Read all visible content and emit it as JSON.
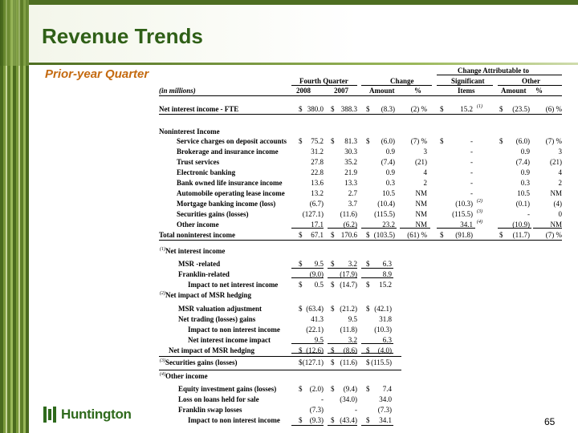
{
  "title": "Revenue Trends",
  "subtitle": "Prior-year Quarter",
  "logo_text": "Huntington",
  "page_number": "65",
  "header": {
    "change_attributable": "Change Attributable to",
    "fourth_quarter": "Fourth Quarter",
    "change": "Change",
    "significant": "Significant",
    "other": "Other",
    "in_millions": "(in millions)",
    "y2008": "2008",
    "y2007": "2007",
    "amount": "Amount",
    "pct": "%",
    "items": "Items",
    "amount2": "Amount",
    "pct2": "%"
  },
  "main_rows": [
    {
      "label": "Net interest income - FTE",
      "bold": true,
      "indent": false,
      "d1": "$",
      "v2008": "380.0",
      "d2": "$",
      "v2007": "388.3",
      "d3": "$",
      "amt": "(8.3)",
      "pct": "(2) %",
      "d4": "$",
      "sig": "15.2",
      "sup": "(1)",
      "d5": "$",
      "oamt": "(23.5)",
      "opct": "(6) %"
    },
    {
      "label": "Noninterest Income",
      "bold": true,
      "indent": false,
      "heading": true
    },
    {
      "label": "Service charges on deposit accounts",
      "bold": true,
      "indent": true,
      "d1": "$",
      "v2008": "75.2",
      "d2": "$",
      "v2007": "81.3",
      "d3": "$",
      "amt": "(6.0)",
      "pct": "(7) %",
      "d4": "$",
      "sig": "-",
      "sup": "",
      "d5": "$",
      "oamt": "(6.0)",
      "opct": "(7) %"
    },
    {
      "label": "Brokerage and insurance income",
      "bold": true,
      "indent": true,
      "v2008": "31.2",
      "v2007": "30.3",
      "amt": "0.9",
      "pct": "3",
      "sig": "-",
      "sup": "",
      "oamt": "0.9",
      "opct": "3"
    },
    {
      "label": "Trust services",
      "bold": true,
      "indent": true,
      "v2008": "27.8",
      "v2007": "35.2",
      "amt": "(7.4)",
      "pct": "(21)",
      "sig": "-",
      "sup": "",
      "oamt": "(7.4)",
      "opct": "(21)"
    },
    {
      "label": "Electronic banking",
      "bold": true,
      "indent": true,
      "v2008": "22.8",
      "v2007": "21.9",
      "amt": "0.9",
      "pct": "4",
      "sig": "-",
      "sup": "",
      "oamt": "0.9",
      "opct": "4"
    },
    {
      "label": "Bank owned life insurance income",
      "bold": true,
      "indent": true,
      "v2008": "13.6",
      "v2007": "13.3",
      "amt": "0.3",
      "pct": "2",
      "sig": "-",
      "sup": "",
      "oamt": "0.3",
      "opct": "2"
    },
    {
      "label": "Automobile operating lease income",
      "bold": true,
      "indent": true,
      "v2008": "13.2",
      "v2007": "2.7",
      "amt": "10.5",
      "pct": "NM",
      "sig": "-",
      "sup": "",
      "oamt": "10.5",
      "opct": "NM"
    },
    {
      "label": "Mortgage banking income (loss)",
      "bold": true,
      "indent": true,
      "v2008": "(6.7)",
      "v2007": "3.7",
      "amt": "(10.4)",
      "pct": "NM",
      "sig": "(10.3)",
      "sup": "(2)",
      "oamt": "(0.1)",
      "opct": "(4)"
    },
    {
      "label": "Securities gains (losses)",
      "bold": true,
      "indent": true,
      "v2008": "(127.1)",
      "v2007": "(11.6)",
      "amt": "(115.5)",
      "pct": "NM",
      "sig": "(115.5)",
      "sup": "(3)",
      "oamt": "-",
      "opct": "0"
    },
    {
      "label": "Other income",
      "bold": true,
      "indent": true,
      "v2008": "17.1",
      "v2007": "(6.2)",
      "amt": "23.2",
      "pct": "NM",
      "sig": "34.1",
      "sup": "(4)",
      "oamt": "(10.9)",
      "opct": "NM"
    },
    {
      "label": "Total noninterest income",
      "bold": true,
      "indent": false,
      "d1": "$",
      "v2008": "67.1",
      "d2": "$",
      "v2007": "170.6",
      "d3": "$",
      "amt": "(103.5)",
      "pct": "(61) %",
      "d4": "$",
      "sig": "(91.8)",
      "sup": "",
      "d5": "$",
      "oamt": "(11.7)",
      "opct": "(7) %"
    }
  ],
  "footnotes": [
    {
      "kind": "note",
      "sup": "(1)",
      "label": "Net interest income"
    },
    {
      "kind": "row",
      "label": "MSR -related",
      "indent": 1,
      "d1": "$",
      "a": "9.5",
      "d2": "$",
      "b": "3.2",
      "d3": "$",
      "c": "6.3"
    },
    {
      "kind": "row",
      "label": "Franklin-related",
      "indent": 1,
      "a": "(9.0)",
      "b": "(17.9)",
      "c": "8.9"
    },
    {
      "kind": "row",
      "label": "Impact to net interest income",
      "indent": 2,
      "d1": "$",
      "a": "0.5",
      "d2": "$",
      "b": "(14.7)",
      "d3": "$",
      "c": "15.2"
    },
    {
      "kind": "note",
      "sup": "(2)",
      "label": "Net impact of MSR hedging"
    },
    {
      "kind": "row",
      "label": "MSR valuation adjustment",
      "indent": 1,
      "d1": "$",
      "a": "(63.4)",
      "d2": "$",
      "b": "(21.2)",
      "d3": "$",
      "c": "(42.1)"
    },
    {
      "kind": "row",
      "label": "Net trading (losses) gains",
      "indent": 1,
      "a": "41.3",
      "b": "9.5",
      "c": "31.8"
    },
    {
      "kind": "row",
      "label": "Impact to non interest income",
      "indent": 2,
      "a": "(22.1)",
      "b": "(11.8)",
      "c": "(10.3)"
    },
    {
      "kind": "row",
      "label": "Net interest income impact",
      "indent": 2,
      "a": "9.5",
      "b": "3.2",
      "c": "6.3"
    },
    {
      "kind": "row",
      "label": "Net impact of MSR hedging",
      "indent": 0.5,
      "d1": "$",
      "a": "(12.6)",
      "d2": "$",
      "b": "(8.6)",
      "d3": "$",
      "c": "(4.0)"
    },
    {
      "kind": "note",
      "sup": "(3)",
      "label": "Securities gains (losses)",
      "d1": "$",
      "a": "(127.1)",
      "d2": "$",
      "b": "(11.6)",
      "d3": "$",
      "c": "(115.5)"
    },
    {
      "kind": "note",
      "sup": "(4)",
      "label": "Other income"
    },
    {
      "kind": "row",
      "label": "Equity investment gains (losses)",
      "indent": 1,
      "d1": "$",
      "a": "(2.0)",
      "d2": "$",
      "b": "(9.4)",
      "d3": "$",
      "c": "7.4"
    },
    {
      "kind": "row",
      "label": "Loss on loans held for sale",
      "indent": 1,
      "a": "-",
      "b": "(34.0)",
      "c": "34.0"
    },
    {
      "kind": "row",
      "label": "Franklin swap losses",
      "indent": 1,
      "a": "(7.3)",
      "b": "-",
      "c": "(7.3)"
    },
    {
      "kind": "row",
      "label": "Impact to non interest income",
      "indent": 2,
      "d1": "$",
      "a": "(9.3)",
      "d2": "$",
      "b": "(43.4)",
      "d3": "$",
      "c": "34.1"
    }
  ]
}
